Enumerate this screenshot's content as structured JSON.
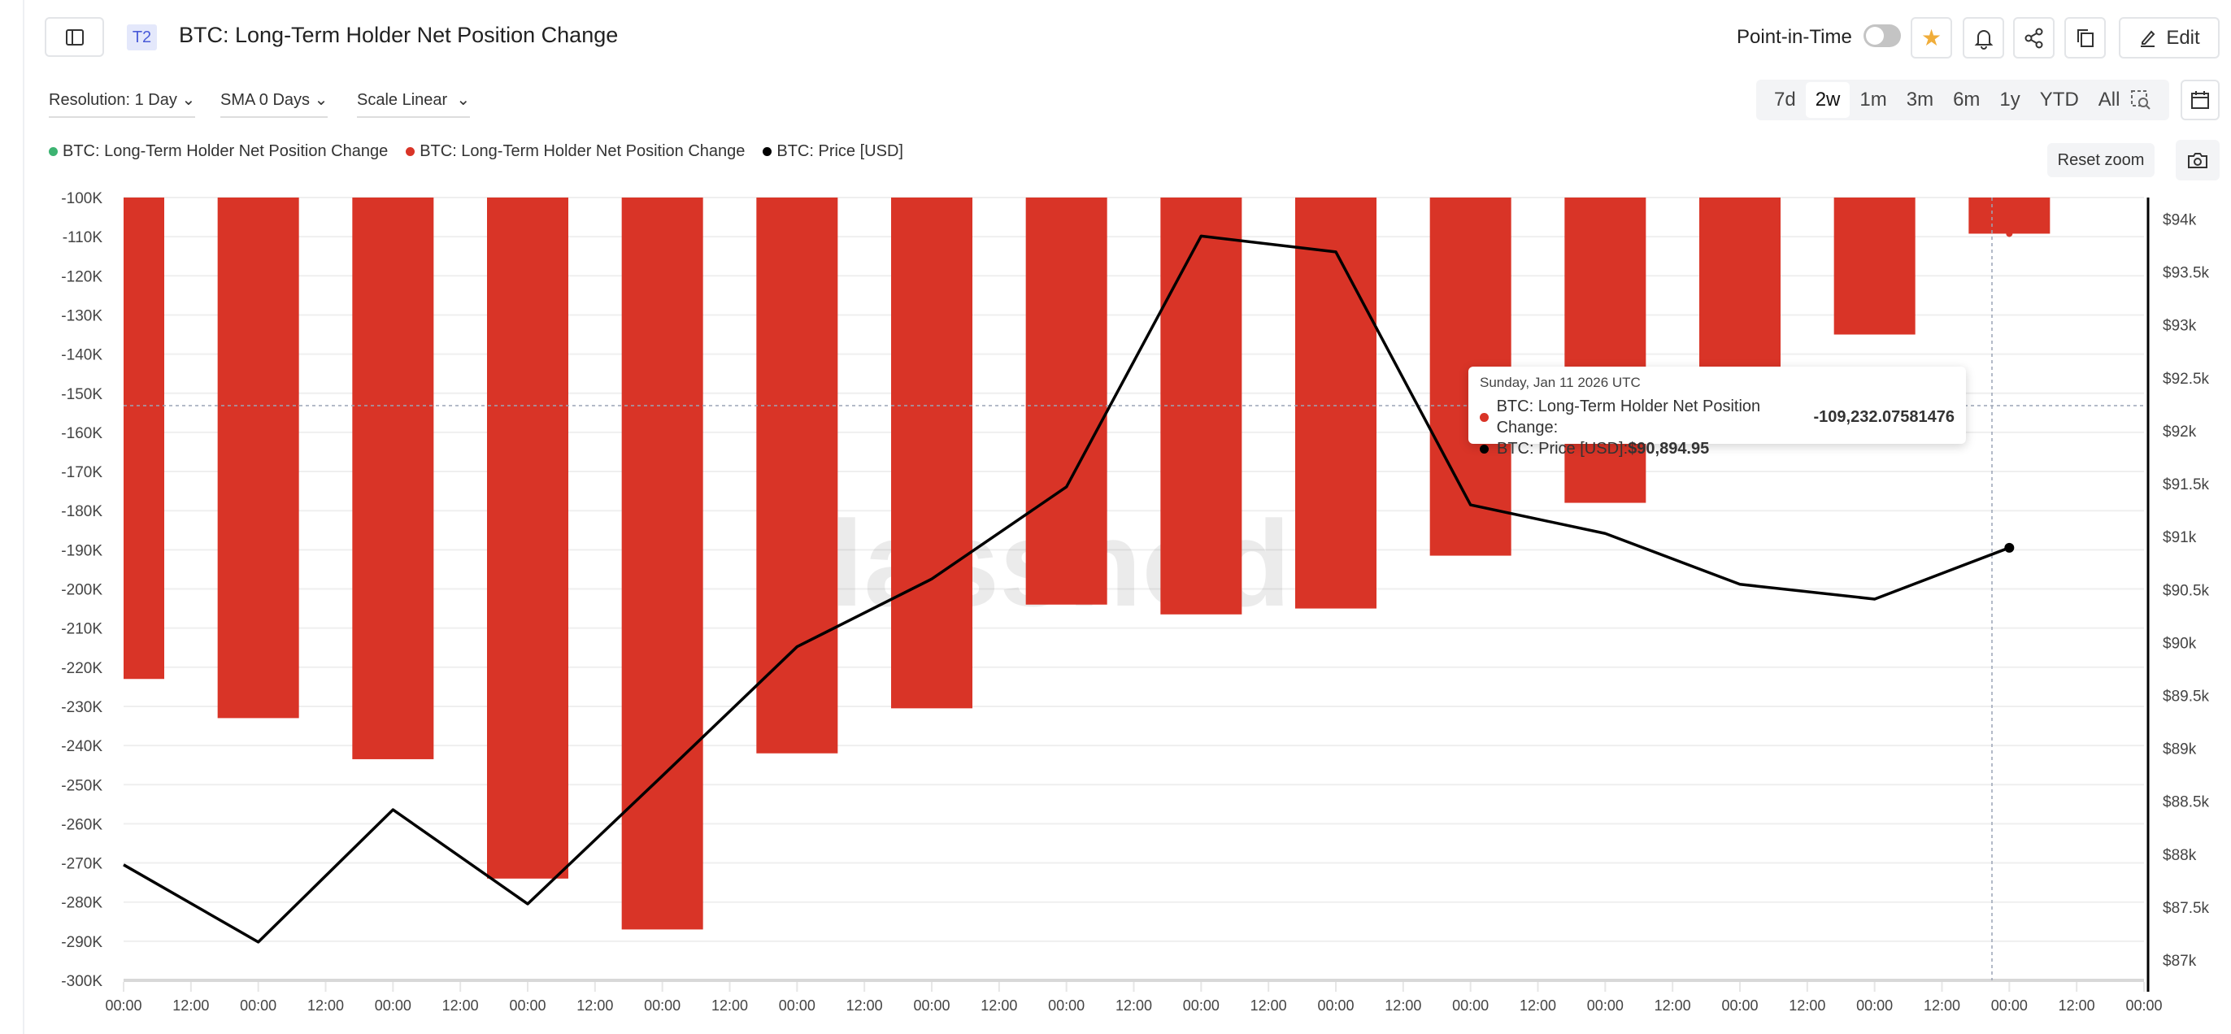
{
  "header": {
    "badge": "T2",
    "title": "BTC: Long-Term Holder Net Position Change",
    "point_in_time_label": "Point-in-Time",
    "point_in_time_on": false,
    "starred": true,
    "edit_label": "Edit"
  },
  "controls": {
    "resolution": "Resolution: 1 Day",
    "sma": "SMA 0 Days",
    "scale": "Scale Linear"
  },
  "ranges": [
    "7d",
    "2w",
    "1m",
    "3m",
    "6m",
    "1y",
    "YTD",
    "All"
  ],
  "active_range": "2w",
  "reset_zoom_label": "Reset zoom",
  "legend": [
    {
      "label": "BTC: Long-Term Holder Net Position Change",
      "color": "#3cb371"
    },
    {
      "label": "BTC: Long-Term Holder Net Position Change",
      "color": "#d93427"
    },
    {
      "label": "BTC: Price [USD]",
      "color": "#000000"
    }
  ],
  "watermark": "glassnode",
  "tooltip": {
    "date": "Sunday, Jan 11 2026 UTC",
    "rows": [
      {
        "label": "BTC: Long-Term Holder Net Position Change: ",
        "value": "-109,232.07581476",
        "color": "#d93427"
      },
      {
        "label": "BTC: Price [USD]: ",
        "value": "$90,894.95",
        "color": "#000000"
      }
    ]
  },
  "chart_data": {
    "type": "bar",
    "x_tick_labels": [
      "00:00",
      "12:00",
      "00:00",
      "12:00",
      "00:00",
      "12:00",
      "00:00",
      "12:00",
      "00:00",
      "12:00",
      "00:00",
      "12:00",
      "00:00",
      "12:00",
      "00:00",
      "12:00",
      "00:00",
      "12:00",
      "00:00",
      "12:00",
      "00:00",
      "12:00",
      "00:00",
      "12:00",
      "00:00",
      "12:00",
      "00:00",
      "12:00",
      "00:00",
      "12:00",
      "00:00"
    ],
    "y_left": {
      "ticks": [
        "-100K",
        "-110K",
        "-120K",
        "-130K",
        "-140K",
        "-150K",
        "-160K",
        "-170K",
        "-180K",
        "-190K",
        "-200K",
        "-210K",
        "-220K",
        "-230K",
        "-240K",
        "-250K",
        "-260K",
        "-270K",
        "-280K",
        "-290K",
        "-300K"
      ],
      "range": [
        -300000,
        -100000
      ]
    },
    "y_right": {
      "ticks": [
        "$94k",
        "$93.5k",
        "$93k",
        "$92.5k",
        "$92k",
        "$91.5k",
        "$91k",
        "$90.5k",
        "$90k",
        "$89.5k",
        "$89k",
        "$88.5k",
        "$88k",
        "$87.5k",
        "$87k"
      ],
      "range": [
        87000,
        94000
      ]
    },
    "grid": true,
    "series": [
      {
        "name": "BTC: Long-Term Holder Net Position Change",
        "type": "bar",
        "axis": "left",
        "color": "#d93427",
        "values": [
          -223000,
          -233000,
          -243500,
          -274000,
          -287000,
          -242000,
          -230500,
          -204000,
          -206500,
          -205000,
          -191500,
          -178000,
          -150000,
          -135000,
          -109232.07581476
        ]
      },
      {
        "name": "BTC: Price [USD]",
        "type": "line",
        "axis": "right",
        "color": "#000000",
        "values": [
          87900,
          87170,
          88420,
          87530,
          88740,
          89960,
          90600,
          91470,
          93840,
          93690,
          91300,
          91030,
          90550,
          90410,
          90894.95
        ]
      }
    ]
  }
}
